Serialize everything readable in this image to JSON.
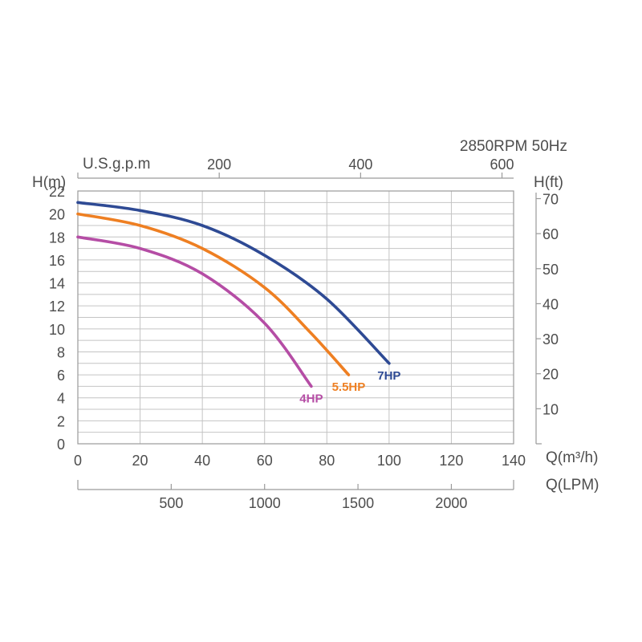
{
  "header": {
    "speed_text": "2850RPM  50Hz"
  },
  "chart_data": {
    "type": "line",
    "x_axis": {
      "label": "Q(m³/h)",
      "range": [
        0,
        140
      ],
      "ticks": [
        0,
        20,
        40,
        60,
        80,
        100,
        120,
        140
      ]
    },
    "y_axis": {
      "label": "H(m)",
      "range": [
        0,
        22
      ],
      "ticks": [
        0,
        2,
        4,
        6,
        8,
        10,
        12,
        14,
        16,
        18,
        20,
        22
      ]
    },
    "x_axis_top": {
      "label": "U.S.g.p.m",
      "ticks": [
        200,
        400,
        600
      ]
    },
    "y_axis_right": {
      "label": "H(ft)",
      "ticks": [
        10,
        20,
        30,
        40,
        50,
        60,
        70
      ]
    },
    "x_axis_bottom2": {
      "label": "Q(LPM)",
      "ticks": [
        500,
        1000,
        1500,
        2000
      ]
    },
    "grid": true,
    "series": [
      {
        "name": "7HP",
        "color": "#2e4a94",
        "points": [
          [
            0,
            21
          ],
          [
            20,
            20.3
          ],
          [
            40,
            19
          ],
          [
            60,
            16.4
          ],
          [
            80,
            12.6
          ],
          [
            100,
            7
          ]
        ]
      },
      {
        "name": "5.5HP",
        "color": "#ee7f22",
        "points": [
          [
            0,
            20
          ],
          [
            20,
            19
          ],
          [
            40,
            17
          ],
          [
            60,
            13.6
          ],
          [
            75,
            9.6
          ],
          [
            87,
            6
          ]
        ]
      },
      {
        "name": "4HP",
        "color": "#b54da5",
        "points": [
          [
            0,
            18
          ],
          [
            20,
            17
          ],
          [
            40,
            14.8
          ],
          [
            60,
            10.5
          ],
          [
            75,
            5
          ]
        ]
      }
    ]
  }
}
